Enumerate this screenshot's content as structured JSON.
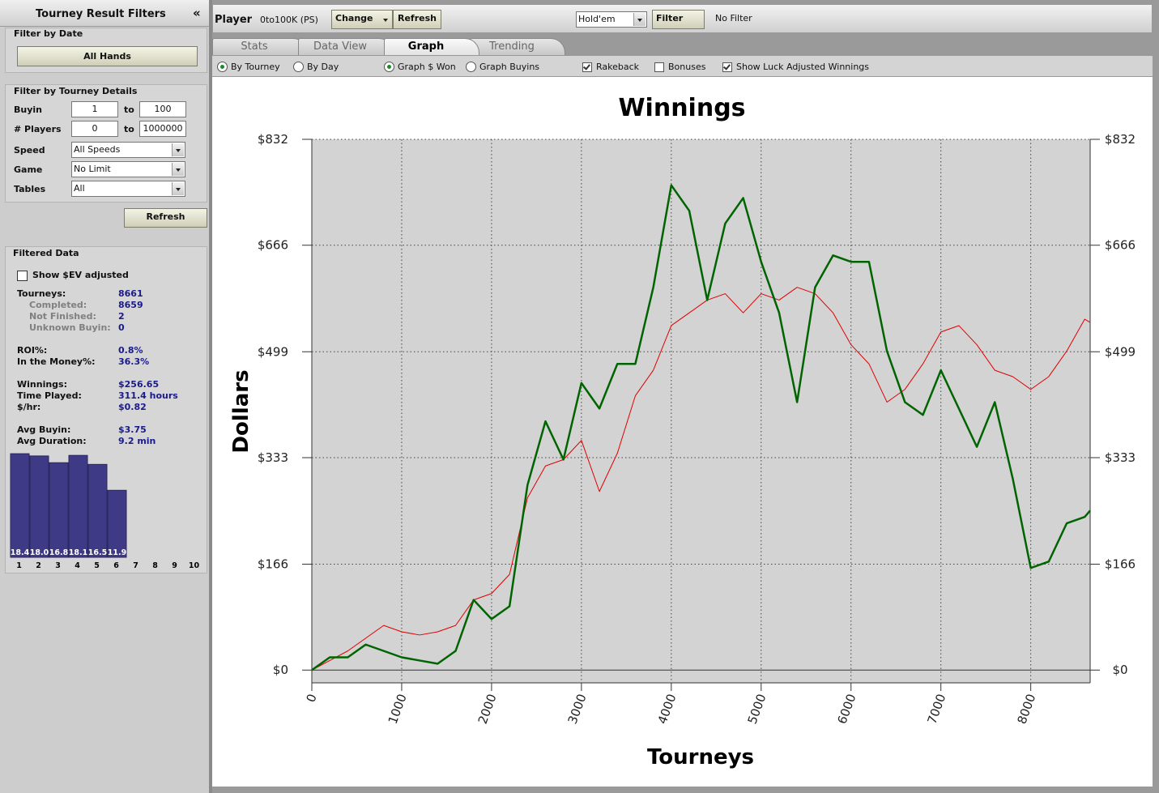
{
  "sidebar": {
    "title": "Tourney Result Filters",
    "collapse": "«",
    "date_filter": {
      "heading": "Filter by Date",
      "button": "All Hands"
    },
    "details": {
      "heading": "Filter by Tourney Details",
      "ranges": [
        {
          "label": "Buyin",
          "from": "1",
          "sep": "to",
          "to": "100"
        },
        {
          "label": "# Players",
          "from": "0",
          "sep": "to",
          "to": "1000000"
        }
      ],
      "selects": [
        {
          "label": "Speed",
          "value": "All Speeds"
        },
        {
          "label": "Game",
          "value": "No Limit"
        },
        {
          "label": "Tables",
          "value": "All"
        }
      ],
      "button": "Refresh"
    },
    "filtered": {
      "heading": "Filtered Data",
      "checkbox": {
        "label": "Show $EV adjusted",
        "checked": false
      },
      "groups": [
        [
          {
            "label": "Tourneys:",
            "value": "8661"
          },
          {
            "label": "Completed:",
            "value": "8659",
            "sub": true
          },
          {
            "label": "Not Finished:",
            "value": "2",
            "sub": true
          },
          {
            "label": "Unknown Buyin:",
            "value": "0",
            "sub": true
          }
        ],
        [
          {
            "label": "ROI%:",
            "value": "0.8%"
          },
          {
            "label": "In the Money%:",
            "value": "36.3%"
          }
        ],
        [
          {
            "label": "Winnings:",
            "value": "$256.65"
          },
          {
            "label": "Time Played:",
            "value": "311.4 hours"
          },
          {
            "label": "$/hr:",
            "value": "$0.82"
          }
        ],
        [
          {
            "label": "Avg Buyin:",
            "value": "$3.75"
          },
          {
            "label": "Avg Duration:",
            "value": "9.2 min"
          }
        ]
      ]
    }
  },
  "topbar": {
    "player_label": "Player",
    "player": "0to100K (PS)",
    "buttons": [
      "Change",
      "Refresh"
    ],
    "game": "Hold'em",
    "filter_button": "Filter",
    "filter_status": "No Filter"
  },
  "tabs": [
    {
      "label": "Stats",
      "active": false
    },
    {
      "label": "Data View",
      "active": false
    },
    {
      "label": "Graph",
      "active": true
    },
    {
      "label": "Trending",
      "active": false
    }
  ],
  "options": [
    {
      "kind": "radio",
      "label": "By Tourney",
      "checked": true
    },
    {
      "kind": "radio",
      "label": "By Day",
      "checked": false
    },
    {
      "kind": "radio",
      "label": "Graph $ Won",
      "checked": true
    },
    {
      "kind": "radio",
      "label": "Graph Buyins",
      "checked": false
    },
    {
      "kind": "checkbox",
      "label": "Rakeback",
      "checked": true
    },
    {
      "kind": "checkbox",
      "label": "Bonuses",
      "checked": false
    },
    {
      "kind": "checkbox",
      "label": "Show Luck Adjusted Winnings",
      "checked": true
    }
  ],
  "chart_data": [
    {
      "type": "line",
      "title": "Winnings",
      "y_label": "Dollars",
      "x_label": "Tourneys",
      "x": [
        0,
        200,
        400,
        600,
        800,
        1000,
        1200,
        1400,
        1600,
        1800,
        2000,
        2200,
        2400,
        2600,
        2800,
        3000,
        3200,
        3400,
        3600,
        3800,
        4000,
        4200,
        4400,
        4600,
        4800,
        5000,
        5200,
        5400,
        5600,
        5800,
        6000,
        6200,
        6400,
        6600,
        6800,
        7000,
        7200,
        7400,
        7600,
        7800,
        8000,
        8200,
        8400,
        8600,
        8661
      ],
      "series": [
        {
          "color": "#e00000",
          "width": 1,
          "values": [
            0,
            15,
            30,
            50,
            70,
            60,
            55,
            60,
            70,
            110,
            120,
            150,
            270,
            320,
            330,
            360,
            280,
            340,
            430,
            470,
            540,
            560,
            580,
            590,
            560,
            590,
            580,
            600,
            590,
            560,
            510,
            480,
            420,
            440,
            480,
            530,
            540,
            510,
            470,
            460,
            440,
            460,
            500,
            550,
            545
          ]
        },
        {
          "color": "#006400",
          "width": 2.5,
          "values": [
            0,
            20,
            20,
            40,
            30,
            20,
            15,
            10,
            30,
            110,
            80,
            100,
            290,
            390,
            330,
            450,
            410,
            480,
            480,
            600,
            760,
            720,
            580,
            700,
            740,
            640,
            560,
            420,
            600,
            650,
            640,
            640,
            500,
            420,
            400,
            470,
            410,
            350,
            420,
            300,
            160,
            170,
            230,
            240,
            250
          ]
        }
      ],
      "xlim": [
        0,
        8661
      ],
      "xticks": [
        0,
        1000,
        2000,
        3000,
        4000,
        5000,
        6000,
        7000,
        8000
      ],
      "ylim": [
        -20,
        832
      ],
      "yticks": [
        {
          "value": 0,
          "label": "$0"
        },
        {
          "value": 166,
          "label": "$166"
        },
        {
          "value": 333,
          "label": "$333"
        },
        {
          "value": 499,
          "label": "$499"
        },
        {
          "value": 666,
          "label": "$666"
        },
        {
          "value": 832,
          "label": "$832"
        }
      ],
      "grid": true,
      "right_axis_labels": true
    },
    {
      "type": "bar",
      "categories": [
        "1",
        "2",
        "3",
        "4",
        "5",
        "6",
        "7",
        "8",
        "9",
        "10"
      ],
      "values": [
        18.4,
        18.0,
        16.8,
        18.1,
        16.5,
        11.9,
        null,
        null,
        null,
        null
      ],
      "value_labels": [
        "18.4",
        "18.0",
        "16.8",
        "18.1",
        "16.5",
        "11.9",
        null,
        null,
        null,
        null
      ],
      "color": "#3f3a86"
    }
  ]
}
